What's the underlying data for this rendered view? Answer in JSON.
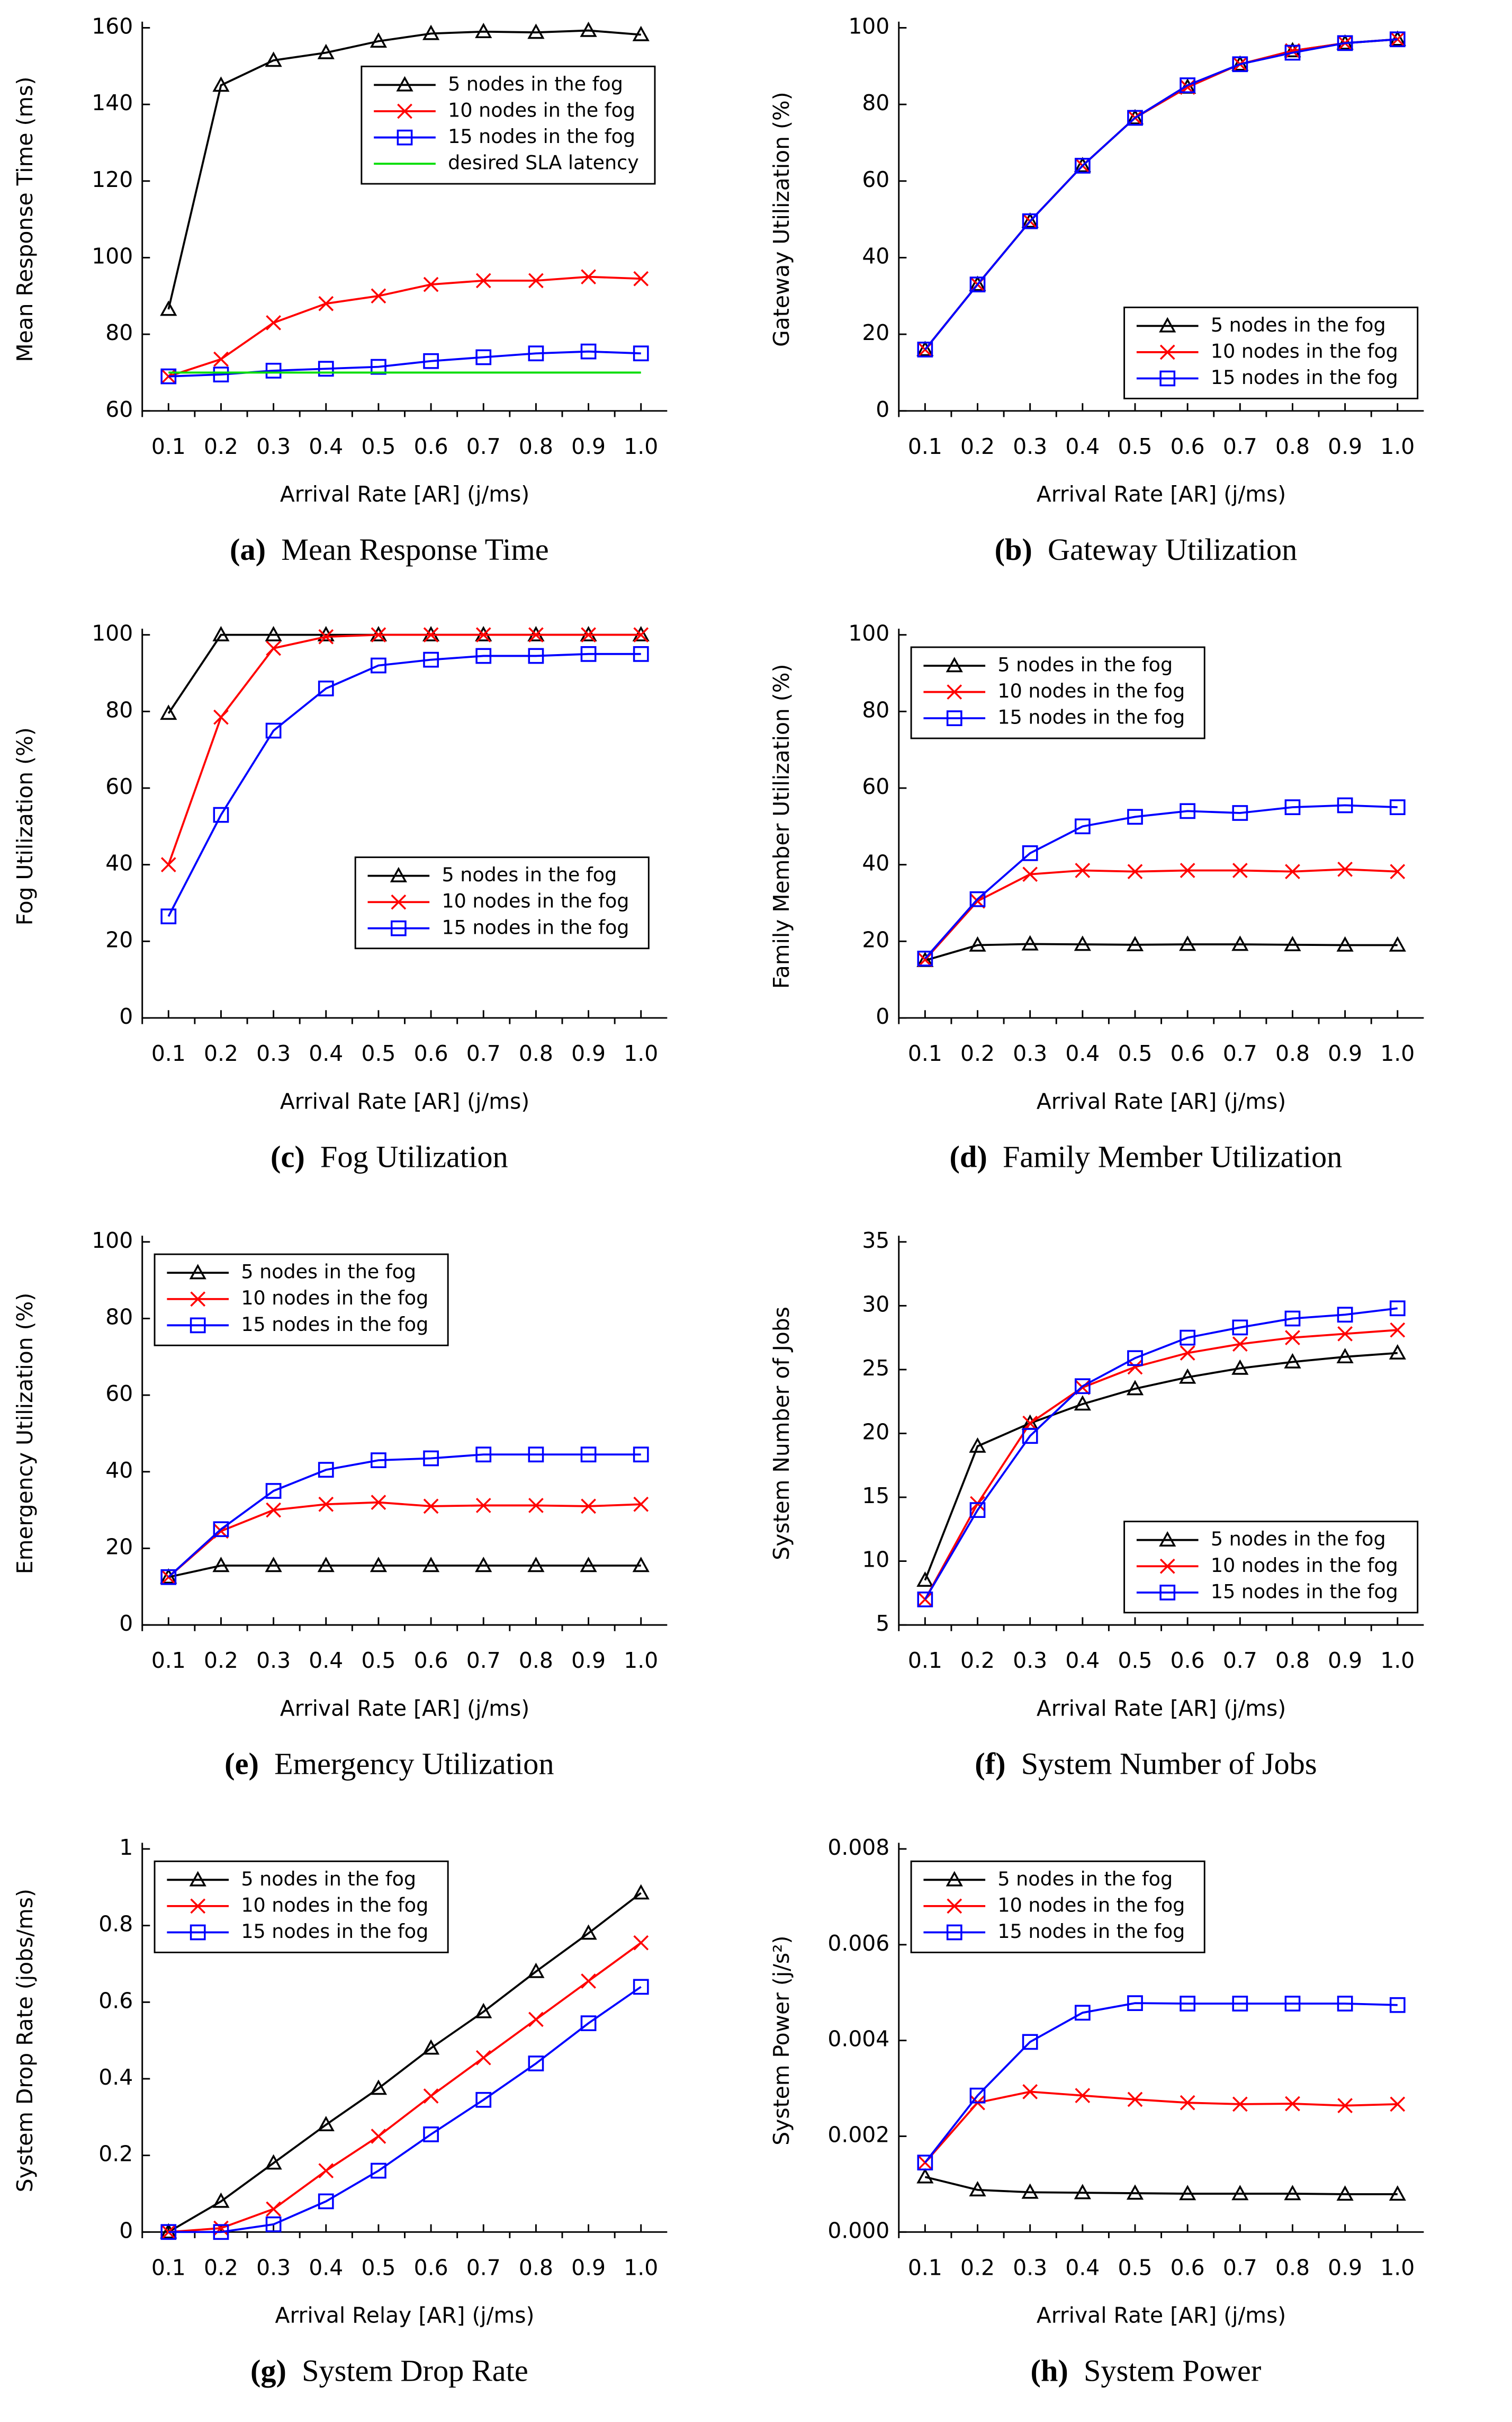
{
  "chart_data": [
    {
      "type": "line",
      "label": "(a)",
      "title": "Mean Response Time",
      "ylabel": "Mean Response Time (ms)",
      "xlabel": "Arrival Rate [AR] (j/ms)",
      "categories": [
        "0.1",
        "0.2",
        "0.3",
        "0.4",
        "0.5",
        "0.6",
        "0.7",
        "0.8",
        "0.9",
        "1.0"
      ],
      "ylim": [
        60,
        160
      ],
      "yticks": [
        60,
        80,
        100,
        120,
        140,
        160
      ],
      "legend": "upper right",
      "series": [
        {
          "name": "5 nodes in the fog",
          "color": "#000000",
          "marker": "triangle",
          "values": [
            86.5,
            145,
            151.5,
            153.5,
            156.5,
            158.5,
            159,
            158.8,
            159.3,
            158.2
          ]
        },
        {
          "name": "10 nodes in the fog",
          "color": "#ff0000",
          "marker": "x",
          "values": [
            69,
            73.5,
            83,
            88,
            90,
            93,
            94,
            94,
            95,
            94.5
          ]
        },
        {
          "name": "15 nodes in the fog",
          "color": "#0000ff",
          "marker": "square",
          "values": [
            69,
            69.5,
            70.5,
            71,
            71.5,
            73,
            74,
            75,
            75.5,
            75
          ]
        },
        {
          "name": "desired SLA latency",
          "color": "#00dd00",
          "marker": "none",
          "values": [
            70,
            70,
            70,
            70,
            70,
            70,
            70,
            70,
            70,
            70
          ]
        }
      ]
    },
    {
      "type": "line",
      "label": "(b)",
      "title": "Gateway Utilization",
      "ylabel": "Gateway Utilization (%)",
      "xlabel": "Arrival Rate [AR] (j/ms)",
      "categories": [
        "0.1",
        "0.2",
        "0.3",
        "0.4",
        "0.5",
        "0.6",
        "0.7",
        "0.8",
        "0.9",
        "1.0"
      ],
      "ylim": [
        0,
        100
      ],
      "yticks": [
        0,
        20,
        40,
        60,
        80,
        100
      ],
      "legend": "lower right",
      "series": [
        {
          "name": "5 nodes in the fog",
          "color": "#000000",
          "marker": "triangle",
          "values": [
            16,
            33,
            49.5,
            64,
            76.5,
            84.5,
            90.5,
            94,
            96,
            97
          ]
        },
        {
          "name": "10 nodes in the fog",
          "color": "#ff0000",
          "marker": "x",
          "values": [
            16,
            33,
            49.5,
            64,
            76.5,
            84.5,
            90.5,
            94,
            96,
            97
          ]
        },
        {
          "name": "15 nodes in the fog",
          "color": "#0000ff",
          "marker": "square",
          "values": [
            16,
            33,
            49.5,
            64,
            76.5,
            85,
            90.5,
            93.5,
            96,
            97
          ]
        }
      ]
    },
    {
      "type": "line",
      "label": "(c)",
      "title": "Fog Utilization",
      "ylabel": "Fog Utilization (%)",
      "xlabel": "Arrival Rate [AR] (j/ms)",
      "categories": [
        "0.1",
        "0.2",
        "0.3",
        "0.4",
        "0.5",
        "0.6",
        "0.7",
        "0.8",
        "0.9",
        "1.0"
      ],
      "ylim": [
        0,
        100
      ],
      "yticks": [
        0,
        20,
        40,
        60,
        80,
        100
      ],
      "legend": "center right",
      "series": [
        {
          "name": "5 nodes in the fog",
          "color": "#000000",
          "marker": "triangle",
          "values": [
            79.5,
            100,
            100,
            100,
            100,
            100,
            100,
            100,
            100,
            100
          ]
        },
        {
          "name": "10 nodes in the fog",
          "color": "#ff0000",
          "marker": "x",
          "values": [
            40,
            78.5,
            96.5,
            99.5,
            100,
            100,
            100,
            100,
            100,
            100
          ]
        },
        {
          "name": "15 nodes in the fog",
          "color": "#0000ff",
          "marker": "square",
          "values": [
            26.5,
            53,
            75,
            86,
            92,
            93.5,
            94.5,
            94.5,
            95,
            95
          ]
        }
      ]
    },
    {
      "type": "line",
      "label": "(d)",
      "title": "Family Member Utilization",
      "ylabel": "Family Member Utilization (%)",
      "xlabel": "Arrival Rate [AR] (j/ms)",
      "categories": [
        "0.1",
        "0.2",
        "0.3",
        "0.4",
        "0.5",
        "0.6",
        "0.7",
        "0.8",
        "0.9",
        "1.0"
      ],
      "ylim": [
        0,
        100
      ],
      "yticks": [
        0,
        20,
        40,
        60,
        80,
        100
      ],
      "legend": "upper left",
      "series": [
        {
          "name": "5 nodes in the fog",
          "color": "#000000",
          "marker": "triangle",
          "values": [
            15,
            19,
            19.3,
            19.2,
            19.1,
            19.2,
            19.2,
            19.1,
            19,
            19
          ]
        },
        {
          "name": "10 nodes in the fog",
          "color": "#ff0000",
          "marker": "x",
          "values": [
            15.2,
            30.5,
            37.5,
            38.5,
            38.2,
            38.5,
            38.5,
            38.2,
            38.8,
            38.2
          ]
        },
        {
          "name": "15 nodes in the fog",
          "color": "#0000ff",
          "marker": "square",
          "values": [
            15.5,
            31,
            43,
            50,
            52.5,
            54,
            53.5,
            55,
            55.5,
            55
          ]
        }
      ]
    },
    {
      "type": "line",
      "label": "(e)",
      "title": "Emergency Utilization",
      "ylabel": "Emergency Utilization (%)",
      "xlabel": "Arrival Rate [AR] (j/ms)",
      "categories": [
        "0.1",
        "0.2",
        "0.3",
        "0.4",
        "0.5",
        "0.6",
        "0.7",
        "0.8",
        "0.9",
        "1.0"
      ],
      "ylim": [
        0,
        100
      ],
      "yticks": [
        0,
        20,
        40,
        60,
        80,
        100
      ],
      "legend": "upper left",
      "series": [
        {
          "name": "5 nodes in the fog",
          "color": "#000000",
          "marker": "triangle",
          "values": [
            12.5,
            15.5,
            15.5,
            15.5,
            15.5,
            15.5,
            15.5,
            15.5,
            15.5,
            15.5
          ]
        },
        {
          "name": "10 nodes in the fog",
          "color": "#ff0000",
          "marker": "x",
          "values": [
            12.5,
            24.5,
            30,
            31.5,
            32,
            31,
            31.2,
            31.2,
            31,
            31.5
          ]
        },
        {
          "name": "15 nodes in the fog",
          "color": "#0000ff",
          "marker": "square",
          "values": [
            12.5,
            25,
            35,
            40.5,
            43,
            43.5,
            44.5,
            44.5,
            44.5,
            44.5
          ]
        }
      ]
    },
    {
      "type": "line",
      "label": "(f)",
      "title": "System Number of Jobs",
      "ylabel": "System Number of Jobs",
      "xlabel": "Arrival Rate [AR] (j/ms)",
      "categories": [
        "0.1",
        "0.2",
        "0.3",
        "0.4",
        "0.5",
        "0.6",
        "0.7",
        "0.8",
        "0.9",
        "1.0"
      ],
      "ylim": [
        5,
        35
      ],
      "yticks": [
        5,
        10,
        15,
        20,
        25,
        30,
        35
      ],
      "legend": "lower right",
      "series": [
        {
          "name": "5 nodes in the fog",
          "color": "#000000",
          "marker": "triangle",
          "values": [
            8.5,
            19,
            20.8,
            22.3,
            23.5,
            24.4,
            25.1,
            25.6,
            26,
            26.3
          ]
        },
        {
          "name": "10 nodes in the fog",
          "color": "#ff0000",
          "marker": "x",
          "values": [
            7,
            14.5,
            20.8,
            23.6,
            25.2,
            26.3,
            27,
            27.5,
            27.8,
            28.1
          ]
        },
        {
          "name": "15 nodes in the fog",
          "color": "#0000ff",
          "marker": "square",
          "values": [
            7,
            14,
            19.8,
            23.7,
            25.9,
            27.5,
            28.3,
            29,
            29.3,
            29.8
          ]
        }
      ]
    },
    {
      "type": "line",
      "label": "(g)",
      "title": "System Drop Rate",
      "ylabel": "System Drop Rate (jobs/ms)",
      "xlabel": "Arrival Relay [AR] (j/ms)",
      "categories": [
        "0.1",
        "0.2",
        "0.3",
        "0.4",
        "0.5",
        "0.6",
        "0.7",
        "0.8",
        "0.9",
        "1.0"
      ],
      "ylim": [
        0,
        1
      ],
      "yticks": [
        0,
        0.2,
        0.4,
        0.6,
        0.8,
        1
      ],
      "legend": "upper left",
      "series": [
        {
          "name": "5 nodes in the fog",
          "color": "#000000",
          "marker": "triangle",
          "values": [
            0,
            0.08,
            0.18,
            0.28,
            0.375,
            0.48,
            0.575,
            0.68,
            0.78,
            0.885
          ]
        },
        {
          "name": "10 nodes in the fog",
          "color": "#ff0000",
          "marker": "x",
          "values": [
            0,
            0.01,
            0.06,
            0.16,
            0.25,
            0.355,
            0.455,
            0.555,
            0.655,
            0.755
          ]
        },
        {
          "name": "15 nodes in the fog",
          "color": "#0000ff",
          "marker": "square",
          "values": [
            0,
            0,
            0.02,
            0.08,
            0.16,
            0.255,
            0.345,
            0.44,
            0.545,
            0.64
          ]
        }
      ]
    },
    {
      "type": "line",
      "label": "(h)",
      "title": "System Power",
      "ylabel": "System Power (j/s²)",
      "xlabel": "Arrival Rate [AR] (j/ms)",
      "categories": [
        "0.1",
        "0.2",
        "0.3",
        "0.4",
        "0.5",
        "0.6",
        "0.7",
        "0.8",
        "0.9",
        "1.0"
      ],
      "ylim": [
        0,
        0.008
      ],
      "yticks": [
        {
          "value": 0,
          "label": "0.000"
        },
        {
          "value": 0.002,
          "label": "0.002"
        },
        {
          "value": 0.004,
          "label": "0.004"
        },
        {
          "value": 0.006,
          "label": "0.006"
        },
        {
          "value": 0.008,
          "label": "0.008"
        }
      ],
      "legend": "upper left",
      "series": [
        {
          "name": "5 nodes in the fog",
          "color": "#000000",
          "marker": "triangle",
          "values": [
            0.00115,
            0.00088,
            0.00083,
            0.00082,
            0.00081,
            0.0008,
            0.0008,
            0.0008,
            0.00079,
            0.00079
          ]
        },
        {
          "name": "10 nodes in the fog",
          "color": "#ff0000",
          "marker": "x",
          "values": [
            0.00145,
            0.0027,
            0.00293,
            0.00285,
            0.00277,
            0.0027,
            0.00267,
            0.00268,
            0.00264,
            0.00267
          ]
        },
        {
          "name": "15 nodes in the fog",
          "color": "#0000ff",
          "marker": "square",
          "values": [
            0.00145,
            0.00285,
            0.00397,
            0.00458,
            0.00478,
            0.00477,
            0.00477,
            0.00477,
            0.00477,
            0.00474
          ]
        }
      ]
    }
  ]
}
